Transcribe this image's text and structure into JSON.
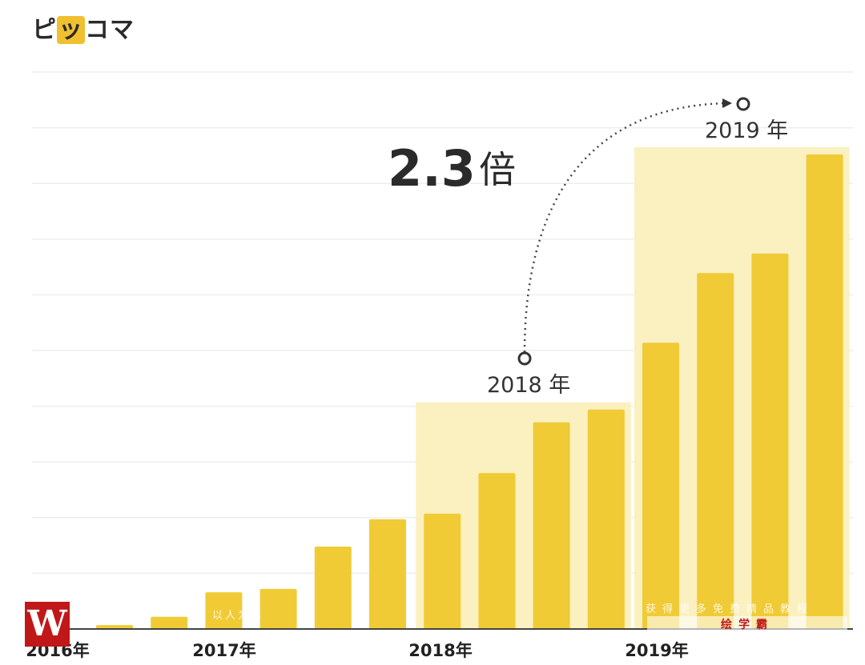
{
  "logo": {
    "text_before": "ピ",
    "text_highlight": "ッ",
    "text_after": "コマ"
  },
  "chart_data": {
    "type": "bar",
    "title": "",
    "xlabel": "",
    "ylabel": "",
    "ylim": [
      0,
      10
    ],
    "grid": true,
    "x_tick_labels": [
      "2016年",
      "2017年",
      "2018年",
      "2019年"
    ],
    "values": [
      0.07,
      0.22,
      0.66,
      0.72,
      1.48,
      1.97,
      2.07,
      2.8,
      3.71,
      3.94,
      5.14,
      6.39,
      6.74,
      8.52
    ],
    "bar_color": "#f0cb35",
    "highlight_color": "#fbf0c0",
    "highlights": [
      {
        "label": "2018 年",
        "from_bar": 6,
        "to_bar": 9
      },
      {
        "label": "2019 年",
        "from_bar": 10,
        "to_bar": 13
      }
    ],
    "annotation": {
      "value": "2.3",
      "suffix": "倍"
    }
  },
  "watermark": {
    "badge": "W",
    "text1": "以人为本",
    "text2": "获得更多免费精品教程",
    "text3": "绘学霸"
  }
}
